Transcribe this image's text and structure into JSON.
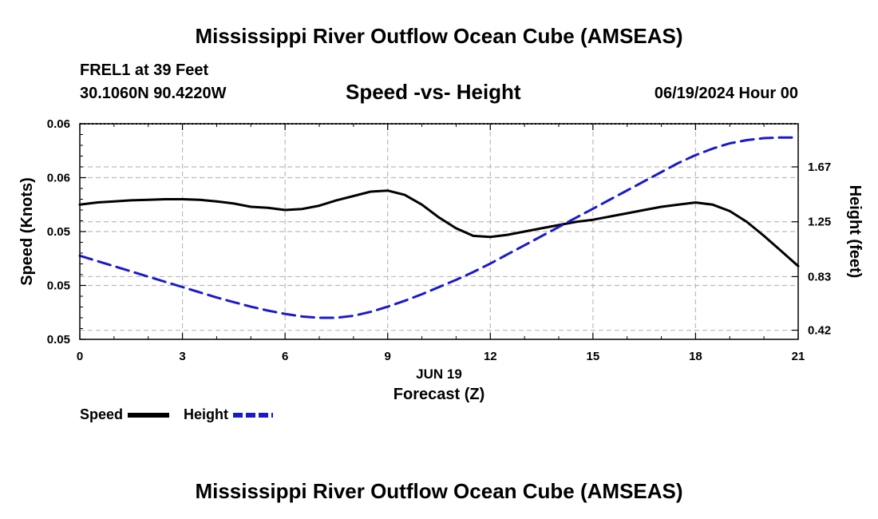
{
  "header": {
    "title": "Mississippi River Outflow Ocean Cube (AMSEAS)",
    "station": "FREL1 at 39 Feet",
    "coords": "30.1060N  90.4220W",
    "subtitle": "Speed -vs- Height",
    "datetime": "06/19/2024 Hour 00",
    "footer_title": "Mississippi River Outflow Ocean Cube (AMSEAS)"
  },
  "legend": {
    "speed_label": "Speed",
    "height_label": "Height"
  },
  "colors": {
    "speed": "#000000",
    "height": "#1a1acc",
    "grid": "#bbbbbb"
  },
  "chart_data": {
    "type": "line",
    "title": "Speed -vs- Height",
    "xlabel": "Forecast (Z)",
    "xlabel_date": "JUN 19",
    "ylabel": "Speed (Knots)",
    "y2label": "Height (feet)",
    "xlim": [
      0,
      21
    ],
    "x_ticks": [
      0,
      3,
      6,
      9,
      12,
      15,
      18,
      21
    ],
    "y_left_ticks": [
      {
        "value": 0.045,
        "label": "0.05"
      },
      {
        "value": 0.05,
        "label": "0.05"
      },
      {
        "value": 0.055,
        "label": "0.05"
      },
      {
        "value": 0.06,
        "label": "0.06"
      },
      {
        "value": 0.065,
        "label": "0.06"
      }
    ],
    "ylim_left": [
      0.045,
      0.065
    ],
    "y_right_ticks": [
      {
        "value": 0.42,
        "label": "0.42"
      },
      {
        "value": 0.83,
        "label": "0.83"
      },
      {
        "value": 1.25,
        "label": "1.25"
      },
      {
        "value": 1.67,
        "label": "1.67"
      }
    ],
    "ylim_right": [
      0.35,
      2.0
    ],
    "series": [
      {
        "name": "Speed",
        "axis": "left",
        "style": "solid",
        "x": [
          0,
          0.5,
          1,
          1.5,
          2,
          2.5,
          3,
          3.5,
          4,
          4.5,
          5,
          5.5,
          6,
          6.5,
          7,
          7.5,
          8,
          8.5,
          9,
          9.5,
          10,
          10.5,
          11,
          11.5,
          12,
          12.5,
          13,
          13.5,
          14,
          14.5,
          15,
          15.5,
          16,
          16.5,
          17,
          17.5,
          18,
          18.5,
          19,
          19.5,
          20,
          20.5,
          21
        ],
        "values": [
          0.0575,
          0.0577,
          0.0578,
          0.0579,
          0.05795,
          0.058,
          0.058,
          0.05795,
          0.0578,
          0.0576,
          0.0573,
          0.0572,
          0.057,
          0.0571,
          0.0574,
          0.0579,
          0.0583,
          0.0587,
          0.0588,
          0.0584,
          0.0575,
          0.0563,
          0.0553,
          0.0546,
          0.0545,
          0.0547,
          0.055,
          0.0553,
          0.0556,
          0.0559,
          0.0561,
          0.0564,
          0.0567,
          0.057,
          0.0573,
          0.0575,
          0.0577,
          0.0575,
          0.0569,
          0.0559,
          0.0546,
          0.0532,
          0.0518
        ]
      },
      {
        "name": "Height",
        "axis": "right",
        "style": "dashed",
        "x": [
          0,
          0.5,
          1,
          1.5,
          2,
          2.5,
          3,
          3.5,
          4,
          4.5,
          5,
          5.5,
          6,
          6.5,
          7,
          7.5,
          8,
          8.5,
          9,
          9.5,
          10,
          10.5,
          11,
          11.5,
          12,
          12.5,
          13,
          13.5,
          14,
          14.5,
          15,
          15.5,
          16,
          16.5,
          17,
          17.5,
          18,
          18.5,
          19,
          19.5,
          20,
          20.5,
          21
        ],
        "values": [
          0.99,
          0.95,
          0.91,
          0.87,
          0.83,
          0.79,
          0.75,
          0.71,
          0.67,
          0.635,
          0.6,
          0.57,
          0.545,
          0.525,
          0.515,
          0.515,
          0.53,
          0.56,
          0.6,
          0.645,
          0.695,
          0.75,
          0.805,
          0.865,
          0.93,
          1.0,
          1.07,
          1.14,
          1.21,
          1.28,
          1.35,
          1.42,
          1.49,
          1.56,
          1.63,
          1.7,
          1.76,
          1.81,
          1.85,
          1.875,
          1.89,
          1.895,
          1.895
        ]
      }
    ]
  }
}
